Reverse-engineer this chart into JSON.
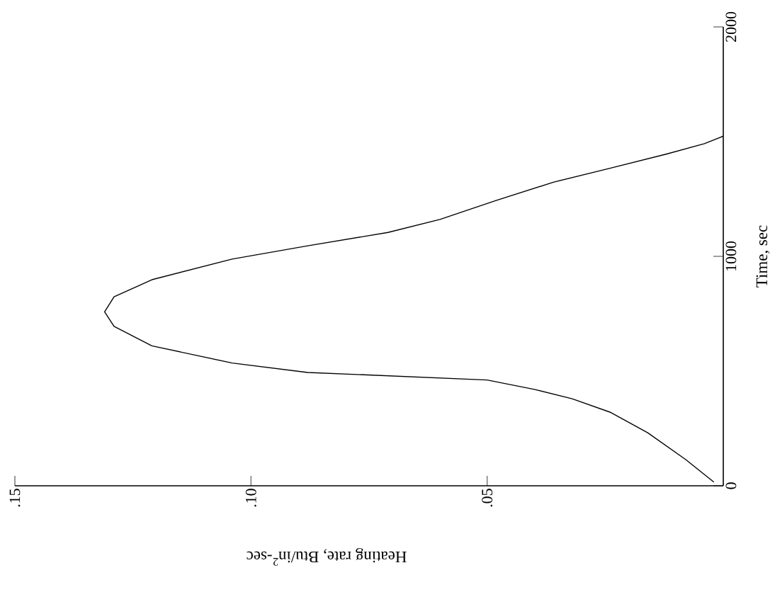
{
  "chart_data": {
    "type": "line",
    "xlabel": "Heating rate, Btu/in$^{2}$-sec",
    "ylabel": "Time, sec",
    "x": [
      0.002,
      0.008,
      0.016,
      0.024,
      0.032,
      0.04,
      0.05,
      0.088,
      0.104,
      0.121,
      0.129,
      0.131,
      0.129,
      0.121,
      0.104,
      0.088,
      0.071,
      0.06,
      0.048,
      0.036,
      0.024,
      0.012,
      0.004,
      0.0
    ],
    "values": [
      16,
      115,
      231,
      321,
      379,
      420,
      461,
      494,
      535,
      610,
      695,
      758,
      824,
      898,
      988,
      1046,
      1104,
      1161,
      1244,
      1323,
      1384,
      1446,
      1491,
      1524
    ],
    "color": "#000000",
    "xlim": [
      0.15,
      0
    ],
    "ylim": [
      0,
      2000
    ],
    "xticks": [
      {
        "value": 0.15,
        "label": ".15"
      },
      {
        "value": 0.1,
        "label": ".10"
      },
      {
        "value": 0.05,
        "label": ".05"
      }
    ],
    "yticks": [
      0,
      1000,
      2000
    ]
  }
}
